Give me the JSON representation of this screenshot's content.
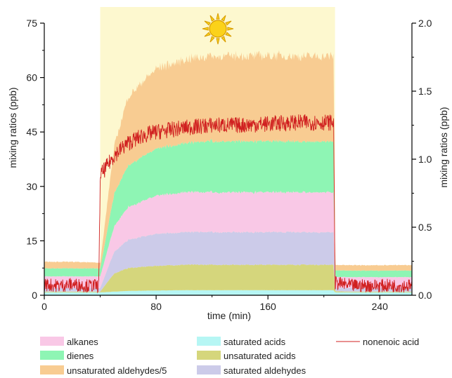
{
  "chart_data": {
    "type": "area",
    "xlabel": "time (min)",
    "ylabel_left": "mixing ratios (ppb)",
    "ylabel_right": "mixing ratios (ppb)",
    "xlim": [
      0,
      263
    ],
    "ylim_left": [
      0,
      75
    ],
    "ylim_right": [
      0,
      2.0
    ],
    "x_ticks": [
      "0",
      "80",
      "160",
      "240"
    ],
    "y_ticks_left": [
      "0",
      "15",
      "30",
      "45",
      "60",
      "75"
    ],
    "y_ticks_right": [
      "0.0",
      "0.5",
      "1.0",
      "1.5",
      "2.0"
    ],
    "illumination": {
      "start": 40,
      "end": 208,
      "icon": "sun-icon",
      "color": "#fdf8cf"
    },
    "x": [
      0,
      20,
      39,
      40,
      50,
      60,
      80,
      100,
      120,
      160,
      200,
      207,
      208,
      220,
      240,
      263
    ],
    "series": [
      {
        "name": "saturated acids",
        "axis": "left",
        "color": "#b6f6f4",
        "values": [
          0.8,
          0.8,
          0.8,
          0.8,
          1.0,
          1.2,
          1.3,
          1.4,
          1.4,
          1.4,
          1.4,
          1.4,
          0.8,
          0.8,
          0.8,
          0.8
        ]
      },
      {
        "name": "unsaturated acids",
        "axis": "left",
        "color": "#d5d67c",
        "values": [
          0.2,
          0.2,
          0.2,
          0.2,
          5.0,
          6.3,
          6.8,
          7.0,
          7.0,
          7.0,
          7.0,
          7.0,
          0.3,
          0.2,
          0.2,
          0.2
        ]
      },
      {
        "name": "saturated aldehydes",
        "axis": "left",
        "color": "#cccbe9",
        "values": [
          1.0,
          1.0,
          1.0,
          1.0,
          6.0,
          7.8,
          8.8,
          9.0,
          9.0,
          9.0,
          9.0,
          9.0,
          1.0,
          1.0,
          1.0,
          1.0
        ]
      },
      {
        "name": "alkanes",
        "axis": "left",
        "color": "#f9c8e6",
        "values": [
          3.2,
          3.2,
          3.2,
          3.2,
          7.0,
          9.0,
          10.5,
          11.0,
          11.0,
          11.0,
          11.0,
          11.0,
          3.0,
          3.0,
          3.0,
          3.0
        ]
      },
      {
        "name": "dienes",
        "axis": "left",
        "color": "#8ef5b4",
        "values": [
          2.2,
          2.2,
          2.2,
          2.2,
          9.0,
          11.5,
          13.0,
          13.5,
          14.0,
          14.0,
          14.0,
          14.0,
          1.8,
          1.8,
          1.8,
          1.8
        ]
      },
      {
        "name": "unsaturated aldehydes/5",
        "axis": "left",
        "color": "#f8cc92",
        "values": [
          1.8,
          1.8,
          1.6,
          1.6,
          13.0,
          19.0,
          22.0,
          23.0,
          23.5,
          23.5,
          23.5,
          23.5,
          1.5,
          1.5,
          1.5,
          1.5
        ]
      }
    ],
    "line_series": [
      {
        "name": "nonenoic acid",
        "axis": "right",
        "color": "#d02020",
        "x": [
          0,
          10,
          20,
          30,
          39,
          40,
          45,
          50,
          60,
          70,
          80,
          100,
          120,
          140,
          160,
          180,
          200,
          207,
          208,
          220,
          240,
          263
        ],
        "values": [
          0.08,
          0.07,
          0.08,
          0.07,
          0.07,
          0.88,
          0.95,
          1.03,
          1.12,
          1.17,
          1.2,
          1.23,
          1.25,
          1.25,
          1.26,
          1.27,
          1.27,
          1.27,
          0.09,
          0.07,
          0.07,
          0.07
        ]
      }
    ],
    "legend": {
      "placement": "bottom",
      "columns": [
        [
          "alkanes",
          "dienes",
          "unsaturated aldehydes/5"
        ],
        [
          "saturated acids",
          "unsaturated acids",
          "saturated aldehydes"
        ],
        [
          "nonenoic acid"
        ]
      ]
    }
  }
}
